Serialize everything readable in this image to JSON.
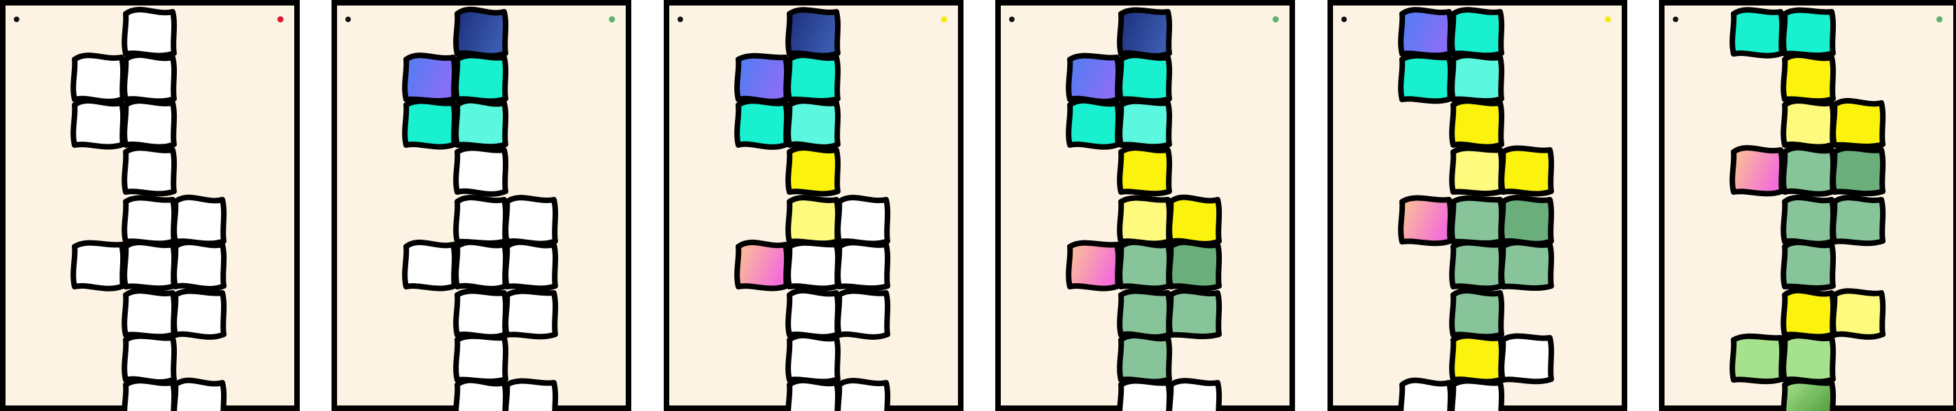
{
  "game": {
    "palette": {
      "background": "#fdf3e4",
      "frame": "#000000",
      "empty": "#ffffff",
      "navy": [
        "#1c2e7a",
        "#3a5bb0"
      ],
      "indigo": [
        "#4d7ff2",
        "#8a6ef7"
      ],
      "cyan": "#18f0d0",
      "cyan_light": "#5cf7df",
      "yellow": "#fbf20e",
      "yellow_light": "#fdfa7e",
      "peach_pink": [
        "#fbc890",
        "#f46ed8"
      ],
      "sage": "#88c49a",
      "sage_dark": "#6aae7c",
      "grass_light": "#a6e28e",
      "grass": "#7cc94a"
    },
    "frames": [
      {
        "status_dot": "#d81e2c",
        "tiles": [
          [
            "c2r0",
            "empty"
          ],
          [
            "c1r1",
            "empty"
          ],
          [
            "c2r1",
            "empty"
          ],
          [
            "c1r2",
            "empty"
          ],
          [
            "c2r2",
            "empty"
          ],
          [
            "c2r3",
            "empty"
          ],
          [
            "c2r4",
            "empty"
          ],
          [
            "c3r4",
            "empty"
          ],
          [
            "c1r5",
            "empty"
          ],
          [
            "c2r5",
            "empty"
          ],
          [
            "c3r5",
            "empty"
          ],
          [
            "c2r6",
            "empty"
          ],
          [
            "c3r6",
            "empty"
          ],
          [
            "c2r7",
            "empty"
          ],
          [
            "c2r8",
            "empty"
          ],
          [
            "c3r8",
            "empty"
          ]
        ]
      },
      {
        "status_dot": "#5fb36e",
        "tiles": [
          [
            "c2r0",
            "navy"
          ],
          [
            "c1r1",
            "indigo"
          ],
          [
            "c2r1",
            "cyan"
          ],
          [
            "c1r2",
            "cyan"
          ],
          [
            "c2r2",
            "cyan_light"
          ],
          [
            "c2r3",
            "empty"
          ],
          [
            "c2r4",
            "empty"
          ],
          [
            "c3r4",
            "empty"
          ],
          [
            "c1r5",
            "empty"
          ],
          [
            "c2r5",
            "empty"
          ],
          [
            "c3r5",
            "empty"
          ],
          [
            "c2r6",
            "empty"
          ],
          [
            "c3r6",
            "empty"
          ],
          [
            "c2r7",
            "empty"
          ],
          [
            "c2r8",
            "empty"
          ],
          [
            "c3r8",
            "empty"
          ]
        ]
      },
      {
        "status_dot": "#f4ea14",
        "tiles": [
          [
            "c2r0",
            "navy"
          ],
          [
            "c1r1",
            "indigo"
          ],
          [
            "c2r1",
            "cyan"
          ],
          [
            "c1r2",
            "cyan"
          ],
          [
            "c2r2",
            "cyan_light"
          ],
          [
            "c2r3",
            "yellow"
          ],
          [
            "c2r4",
            "yellow_light"
          ],
          [
            "c3r4",
            "empty"
          ],
          [
            "c1r5",
            "peach_pink"
          ],
          [
            "c2r5",
            "empty"
          ],
          [
            "c3r5",
            "empty"
          ],
          [
            "c2r6",
            "empty"
          ],
          [
            "c3r6",
            "empty"
          ],
          [
            "c2r7",
            "empty"
          ],
          [
            "c2r8",
            "empty"
          ],
          [
            "c3r8",
            "empty"
          ]
        ]
      },
      {
        "status_dot": "#5fb36e",
        "tiles": [
          [
            "c2r0",
            "navy"
          ],
          [
            "c1r1",
            "indigo"
          ],
          [
            "c2r1",
            "cyan"
          ],
          [
            "c1r2",
            "cyan"
          ],
          [
            "c2r2",
            "cyan_light"
          ],
          [
            "c2r3",
            "yellow"
          ],
          [
            "c2r4",
            "yellow_light"
          ],
          [
            "c3r4",
            "yellow"
          ],
          [
            "c1r5",
            "peach_pink"
          ],
          [
            "c2r5",
            "sage"
          ],
          [
            "c3r5",
            "sage_dark"
          ],
          [
            "c2r6",
            "sage"
          ],
          [
            "c3r6",
            "sage"
          ],
          [
            "c2r7",
            "sage"
          ],
          [
            "c2r8",
            "empty"
          ],
          [
            "c3r8",
            "empty"
          ]
        ]
      },
      {
        "status_dot": "#f4ea14",
        "tiles": [
          [
            "c1r0",
            "indigo"
          ],
          [
            "c2r0",
            "cyan"
          ],
          [
            "c1r1",
            "cyan"
          ],
          [
            "c2r1",
            "cyan_light"
          ],
          [
            "c2r2",
            "yellow"
          ],
          [
            "c2r3",
            "yellow_light"
          ],
          [
            "c3r3",
            "yellow"
          ],
          [
            "c1r4",
            "peach_pink"
          ],
          [
            "c2r4",
            "sage"
          ],
          [
            "c3r4",
            "sage_dark"
          ],
          [
            "c2r5",
            "sage"
          ],
          [
            "c3r5",
            "sage"
          ],
          [
            "c2r6",
            "sage"
          ],
          [
            "c2r7",
            "yellow"
          ],
          [
            "c3r7",
            "empty"
          ],
          [
            "c1r8",
            "empty"
          ],
          [
            "c2r8",
            "empty"
          ]
        ]
      },
      {
        "status_dot": "#5fb36e",
        "tiles": [
          [
            "c1r0",
            "cyan"
          ],
          [
            "c2r0",
            "cyan"
          ],
          [
            "c2r1",
            "yellow"
          ],
          [
            "c2r2",
            "yellow_light"
          ],
          [
            "c3r2",
            "yellow"
          ],
          [
            "c1r3",
            "peach_pink"
          ],
          [
            "c2r3",
            "sage"
          ],
          [
            "c3r3",
            "sage_dark"
          ],
          [
            "c2r4",
            "sage"
          ],
          [
            "c3r4",
            "sage"
          ],
          [
            "c2r5",
            "sage"
          ],
          [
            "c2r6",
            "yellow"
          ],
          [
            "c3r6",
            "yellow_light"
          ],
          [
            "c1r7",
            "grass_light"
          ],
          [
            "c2r7",
            "grass_light"
          ],
          [
            "c2r8",
            "grass"
          ]
        ]
      }
    ]
  }
}
